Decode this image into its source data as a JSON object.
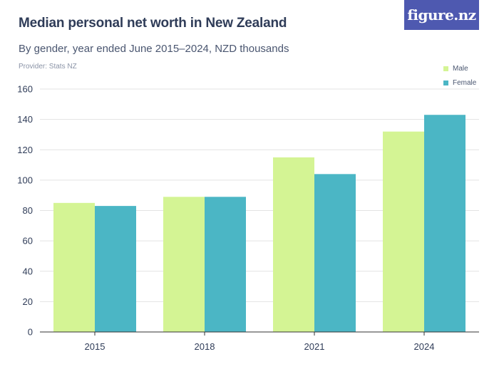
{
  "header": {
    "title": "Median personal net worth in New Zealand",
    "subtitle": "By gender, year ended June 2015–2024, NZD thousands",
    "provider": "Provider: Stats NZ",
    "logo_text": "figure.nz"
  },
  "colors": {
    "male": "#d4f494",
    "female": "#4bb6c5",
    "logo_bg": "#4e59b0",
    "grid": "#e3e3e3",
    "axis": "#333333"
  },
  "chart_data": {
    "type": "bar",
    "title": "Median personal net worth in New Zealand",
    "subtitle": "By gender, year ended June 2015–2024, NZD thousands",
    "xlabel": "",
    "ylabel": "",
    "categories": [
      "2015",
      "2018",
      "2021",
      "2024"
    ],
    "series": [
      {
        "name": "Male",
        "values": [
          85,
          89,
          115,
          132
        ]
      },
      {
        "name": "Female",
        "values": [
          83,
          89,
          104,
          143
        ]
      }
    ],
    "ylim": [
      0,
      160
    ],
    "yticks": [
      "0",
      "20",
      "40",
      "60",
      "80",
      "100",
      "120",
      "140",
      "160"
    ],
    "grid": true,
    "legend_position": "top-right"
  }
}
